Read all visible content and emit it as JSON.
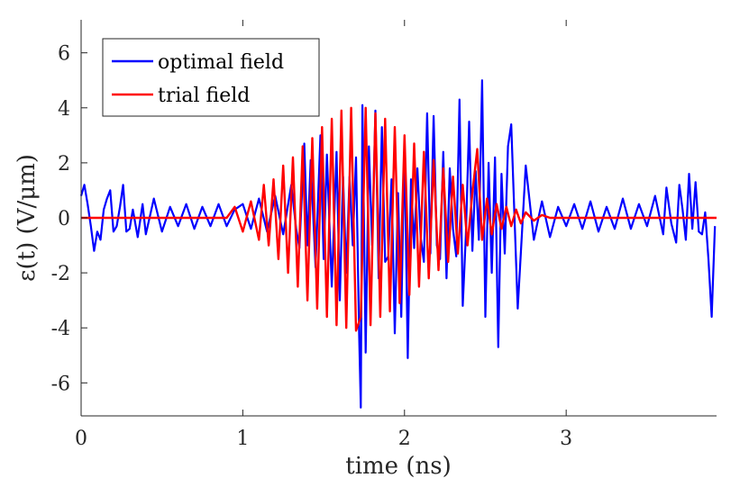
{
  "chart_data": {
    "type": "line",
    "title": "",
    "xlabel": "time (ns)",
    "ylabel": "ε(t) (V/μm)",
    "xlim": [
      0,
      3.93
    ],
    "ylim": [
      -7.2,
      7.2
    ],
    "xticks": [
      0,
      1,
      2,
      3
    ],
    "xtick_labels": [
      "0",
      "1",
      "2",
      "3"
    ],
    "yticks": [
      -6,
      -4,
      -2,
      0,
      2,
      4,
      6
    ],
    "ytick_labels": [
      "-6",
      "-4",
      "-2",
      "0",
      "2",
      "4",
      "6"
    ],
    "grid": false,
    "legend_position": "top-left",
    "series": [
      {
        "name": "optimal field",
        "color": "#0000ff",
        "x": [
          0.0,
          0.02,
          0.04,
          0.06,
          0.08,
          0.1,
          0.12,
          0.14,
          0.16,
          0.18,
          0.2,
          0.22,
          0.24,
          0.26,
          0.28,
          0.3,
          0.32,
          0.35,
          0.38,
          0.4,
          0.45,
          0.5,
          0.55,
          0.6,
          0.65,
          0.7,
          0.75,
          0.8,
          0.85,
          0.9,
          0.95,
          1.0,
          1.05,
          1.1,
          1.15,
          1.2,
          1.25,
          1.3,
          1.33,
          1.35,
          1.38,
          1.4,
          1.42,
          1.45,
          1.48,
          1.5,
          1.52,
          1.55,
          1.58,
          1.6,
          1.62,
          1.64,
          1.66,
          1.68,
          1.7,
          1.72,
          1.73,
          1.74,
          1.76,
          1.78,
          1.8,
          1.82,
          1.84,
          1.86,
          1.88,
          1.9,
          1.92,
          1.94,
          1.96,
          1.98,
          2.0,
          2.02,
          2.04,
          2.06,
          2.08,
          2.1,
          2.12,
          2.14,
          2.16,
          2.18,
          2.2,
          2.22,
          2.24,
          2.26,
          2.28,
          2.3,
          2.32,
          2.34,
          2.36,
          2.38,
          2.4,
          2.42,
          2.44,
          2.46,
          2.48,
          2.5,
          2.52,
          2.54,
          2.56,
          2.58,
          2.6,
          2.62,
          2.64,
          2.66,
          2.7,
          2.75,
          2.8,
          2.85,
          2.9,
          2.95,
          3.0,
          3.05,
          3.1,
          3.15,
          3.2,
          3.25,
          3.3,
          3.35,
          3.4,
          3.45,
          3.5,
          3.55,
          3.6,
          3.62,
          3.65,
          3.68,
          3.7,
          3.72,
          3.74,
          3.76,
          3.78,
          3.8,
          3.82,
          3.84,
          3.86,
          3.88,
          3.9,
          3.92
        ],
        "values": [
          0.8,
          1.2,
          0.5,
          -0.3,
          -1.2,
          -0.5,
          -0.8,
          0.3,
          0.7,
          1.0,
          -0.5,
          -0.3,
          0.4,
          1.2,
          -0.5,
          -0.4,
          0.3,
          -0.7,
          0.5,
          -0.6,
          0.7,
          -0.5,
          0.4,
          -0.3,
          0.5,
          -0.4,
          0.4,
          -0.3,
          0.5,
          -0.3,
          0.3,
          0.5,
          -0.4,
          0.7,
          -0.5,
          0.8,
          -0.6,
          1.2,
          -0.4,
          -1.1,
          2.7,
          -1.0,
          2.1,
          -1.8,
          3.0,
          -1.5,
          2.3,
          -2.5,
          2.4,
          -3.0,
          1.5,
          -2.0,
          1.5,
          -1.0,
          2.2,
          -4.3,
          -6.9,
          4.1,
          -4.9,
          2.6,
          -1.0,
          3.9,
          -2.2,
          3.3,
          -1.6,
          -1.4,
          1.4,
          -4.2,
          0.9,
          -3.6,
          2.7,
          -5.1,
          1.4,
          -1.1,
          1.8,
          -0.7,
          -1.6,
          3.8,
          -1.3,
          3.7,
          -1.0,
          -1.5,
          2.4,
          -2.2,
          1.8,
          -0.4,
          -1.4,
          4.3,
          -3.2,
          -0.6,
          3.5,
          -1.2,
          1.7,
          -0.8,
          5.0,
          -3.6,
          2.0,
          -2.0,
          2.2,
          -4.7,
          1.6,
          -1.3,
          2.6,
          3.4,
          -3.3,
          1.9,
          -0.8,
          0.6,
          -0.7,
          0.4,
          -0.3,
          0.5,
          -0.4,
          0.6,
          -0.5,
          0.4,
          -0.4,
          0.7,
          -0.4,
          0.5,
          -0.3,
          0.8,
          -0.6,
          1.1,
          -0.2,
          -0.9,
          1.2,
          0.3,
          -0.8,
          1.6,
          -0.4,
          1.3,
          -0.5,
          -0.6,
          0.2,
          -1.5,
          -3.6,
          -0.3
        ]
      },
      {
        "name": "trial field",
        "color": "#ff0000",
        "x": [
          0.0,
          0.9,
          0.95,
          1.0,
          1.05,
          1.1,
          1.13,
          1.16,
          1.19,
          1.22,
          1.25,
          1.28,
          1.31,
          1.34,
          1.37,
          1.4,
          1.43,
          1.46,
          1.49,
          1.52,
          1.55,
          1.58,
          1.61,
          1.64,
          1.67,
          1.7,
          1.73,
          1.76,
          1.79,
          1.82,
          1.85,
          1.88,
          1.91,
          1.94,
          1.97,
          2.0,
          2.03,
          2.06,
          2.09,
          2.12,
          2.15,
          2.18,
          2.21,
          2.24,
          2.27,
          2.3,
          2.33,
          2.36,
          2.39,
          2.42,
          2.45,
          2.48,
          2.51,
          2.54,
          2.57,
          2.6,
          2.63,
          2.66,
          2.69,
          2.72,
          2.75,
          2.8,
          2.85,
          2.9,
          3.0,
          3.93
        ],
        "values": [
          0,
          0,
          0.4,
          -0.5,
          0.6,
          -0.8,
          1.2,
          -1.0,
          1.4,
          -1.5,
          1.9,
          -2.0,
          2.2,
          -2.5,
          2.6,
          -3.0,
          2.9,
          -3.3,
          3.3,
          -3.6,
          3.6,
          -3.9,
          3.9,
          -4.0,
          4.0,
          -4.1,
          -3.6,
          4.0,
          -3.9,
          3.8,
          -3.6,
          3.6,
          -3.4,
          3.3,
          -3.1,
          3.0,
          -2.8,
          2.7,
          -2.5,
          2.4,
          -2.2,
          2.1,
          -1.9,
          1.8,
          -1.6,
          1.5,
          -1.3,
          1.2,
          -1.0,
          0.9,
          2.5,
          -0.8,
          0.7,
          -0.6,
          0.5,
          -0.4,
          0.4,
          -0.3,
          0.3,
          -0.2,
          0.2,
          -0.1,
          0.1,
          0,
          0,
          0
        ]
      }
    ]
  }
}
